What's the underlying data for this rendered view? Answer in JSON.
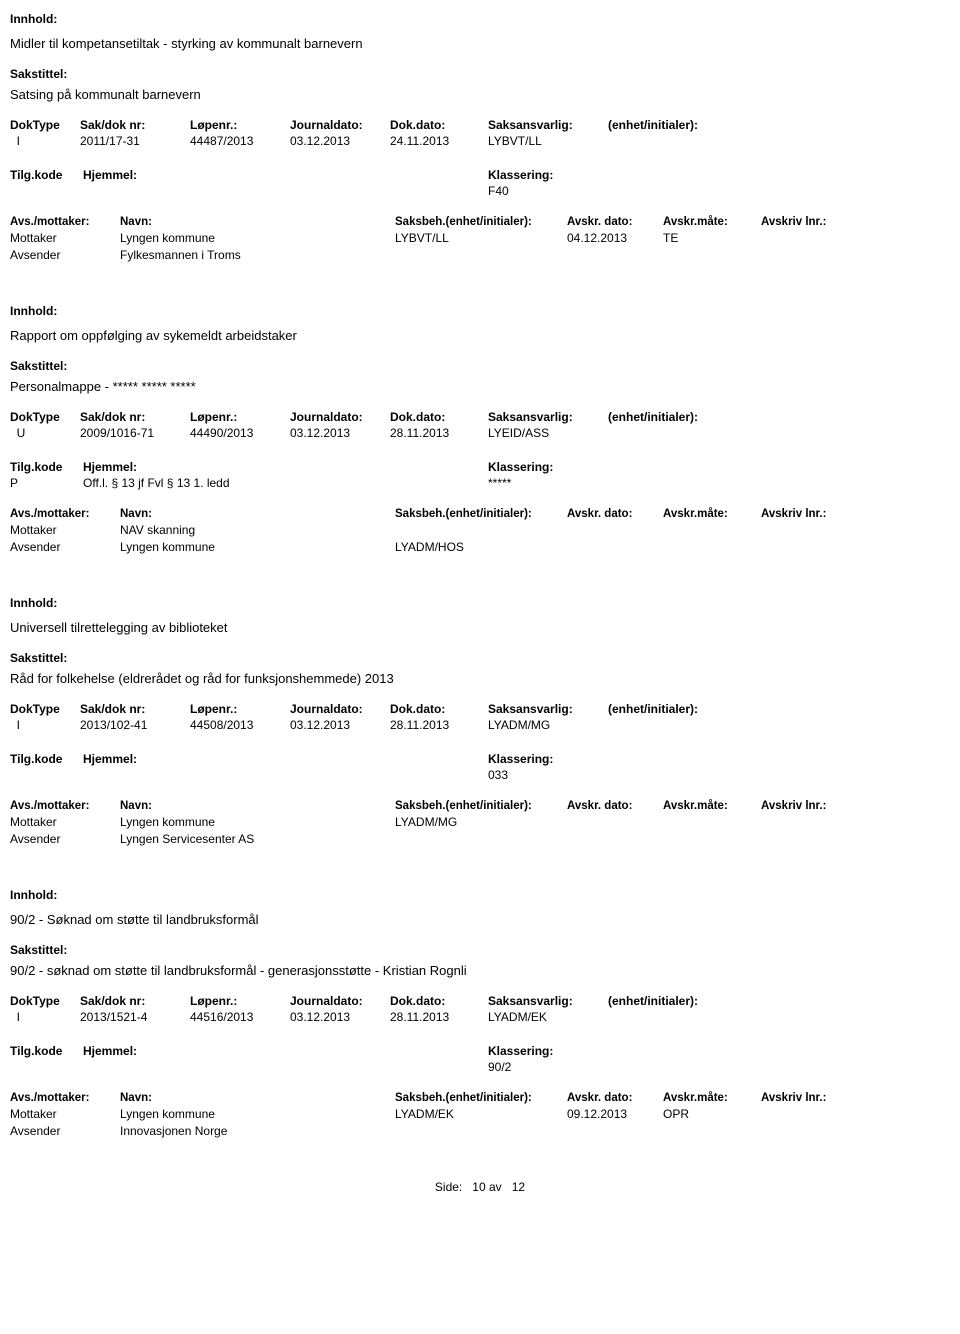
{
  "labels": {
    "innhold": "Innhold:",
    "sakstittel": "Sakstittel:",
    "doktype": "DokType",
    "sakdoknr": "Sak/dok nr:",
    "lopenr": "Løpenr.:",
    "journaldato": "Journaldato:",
    "dokdato": "Dok.dato:",
    "saksansvarlig": "Saksansvarlig:",
    "enhetinitialer": "(enhet/initialer):",
    "tilgkode": "Tilg.kode",
    "hjemmel": "Hjemmel:",
    "klassering": "Klassering:",
    "avsmottaker": "Avs./mottaker:",
    "navn": "Navn:",
    "saksbeh": "Saksbeh.(enhet/initialer):",
    "avskrdato": "Avskr. dato:",
    "avskrmate": "Avskr.måte:",
    "avskrivlnr": "Avskriv lnr.:",
    "mottaker": "Mottaker",
    "avsender": "Avsender"
  },
  "records": [
    {
      "innhold": "Midler til kompetansetiltak - styrking av kommunalt barnevern",
      "sakstittel": "Satsing på kommunalt barnevern",
      "doktype": "I",
      "sakdoknr": "2011/17-31",
      "lopenr": "44487/2013",
      "journaldato": "03.12.2013",
      "dokdato": "24.11.2013",
      "saksansvarlig": "LYBVT/LL",
      "tilgkode": "",
      "hjemmel": "",
      "klassering": "F40",
      "parties": [
        {
          "role": "Mottaker",
          "navn": "Lyngen kommune",
          "saksbeh": "LYBVT/LL",
          "avskrdato": "04.12.2013",
          "avskrmate": "TE",
          "avskrivlnr": ""
        },
        {
          "role": "Avsender",
          "navn": "Fylkesmannen i Troms",
          "saksbeh": "",
          "avskrdato": "",
          "avskrmate": "",
          "avskrivlnr": ""
        }
      ]
    },
    {
      "innhold": "Rapport om oppfølging av sykemeldt arbeidstaker",
      "sakstittel": "Personalmappe - ***** ***** *****",
      "doktype": "U",
      "sakdoknr": "2009/1016-71",
      "lopenr": "44490/2013",
      "journaldato": "03.12.2013",
      "dokdato": "28.11.2013",
      "saksansvarlig": "LYEID/ASS",
      "tilgkode": "P",
      "hjemmel": "Off.l. § 13 jf Fvl § 13 1. ledd",
      "klassering": "*****",
      "parties": [
        {
          "role": "Mottaker",
          "navn": "NAV skanning",
          "saksbeh": "",
          "avskrdato": "",
          "avskrmate": "",
          "avskrivlnr": ""
        },
        {
          "role": "Avsender",
          "navn": "Lyngen kommune",
          "saksbeh": "LYADM/HOS",
          "avskrdato": "",
          "avskrmate": "",
          "avskrivlnr": ""
        }
      ]
    },
    {
      "innhold": "Universell tilrettelegging av biblioteket",
      "sakstittel": "Råd for folkehelse (eldrerådet og råd for funksjonshemmede) 2013",
      "doktype": "I",
      "sakdoknr": "2013/102-41",
      "lopenr": "44508/2013",
      "journaldato": "03.12.2013",
      "dokdato": "28.11.2013",
      "saksansvarlig": "LYADM/MG",
      "tilgkode": "",
      "hjemmel": "",
      "klassering": "033",
      "parties": [
        {
          "role": "Mottaker",
          "navn": "Lyngen kommune",
          "saksbeh": "LYADM/MG",
          "avskrdato": "",
          "avskrmate": "",
          "avskrivlnr": ""
        },
        {
          "role": "Avsender",
          "navn": "Lyngen Servicesenter AS",
          "saksbeh": "",
          "avskrdato": "",
          "avskrmate": "",
          "avskrivlnr": ""
        }
      ]
    },
    {
      "innhold": "90/2 - Søknad om støtte til landbruksformål",
      "sakstittel": "90/2 - søknad om støtte til landbruksformål - generasjonsstøtte - Kristian Rognli",
      "doktype": "I",
      "sakdoknr": "2013/1521-4",
      "lopenr": "44516/2013",
      "journaldato": "03.12.2013",
      "dokdato": "28.11.2013",
      "saksansvarlig": "LYADM/EK",
      "tilgkode": "",
      "hjemmel": "",
      "klassering": "90/2",
      "parties": [
        {
          "role": "Mottaker",
          "navn": "Lyngen kommune",
          "saksbeh": "LYADM/EK",
          "avskrdato": "09.12.2013",
          "avskrmate": "OPR",
          "avskrivlnr": ""
        },
        {
          "role": "Avsender",
          "navn": "Innovasjonen Norge",
          "saksbeh": "",
          "avskrdato": "",
          "avskrmate": "",
          "avskrivlnr": ""
        }
      ]
    }
  ],
  "footer": {
    "side_label": "Side:",
    "page": "10",
    "av": "av",
    "total": "12"
  }
}
